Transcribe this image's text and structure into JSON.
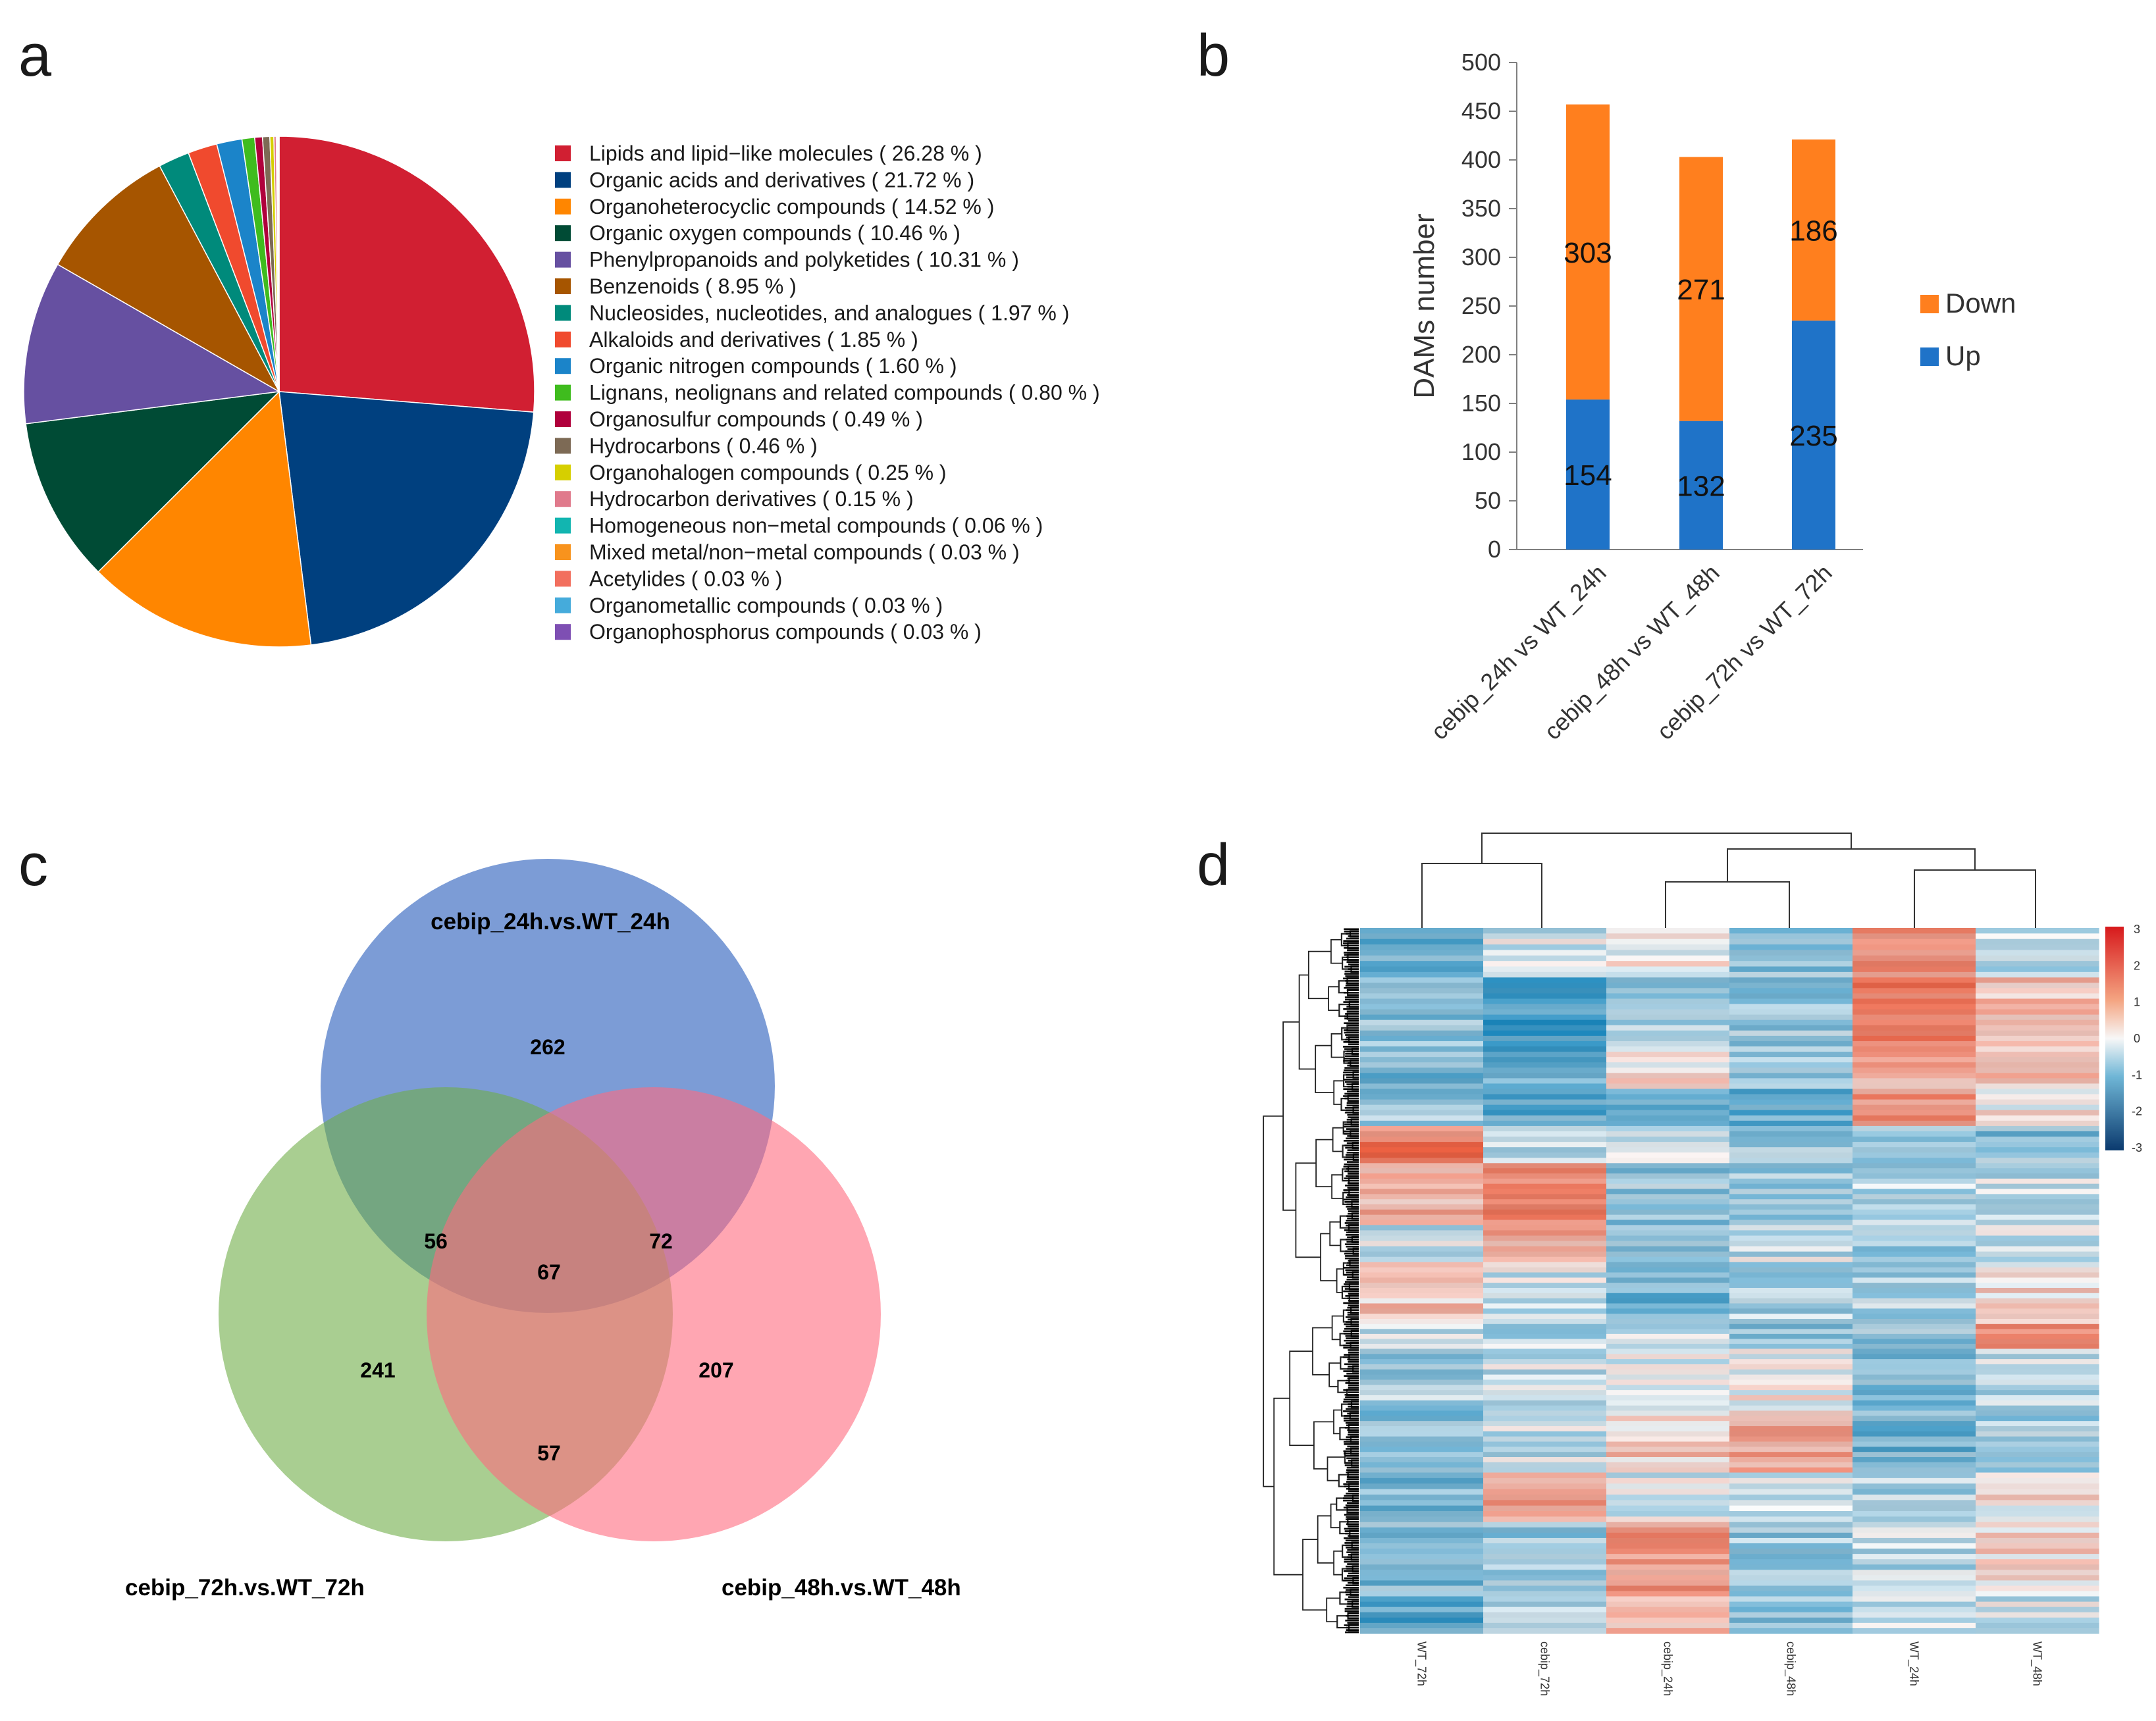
{
  "panels": {
    "a": "a",
    "b": "b",
    "c": "c",
    "d": "d"
  },
  "chart_data": [
    {
      "type": "pie",
      "panel": "a",
      "slices": [
        {
          "label": "Lipids and lipid−like molecules",
          "pct_text": "( 26.28 % )",
          "value": 26.28,
          "color": "#D11F32"
        },
        {
          "label": "Organic acids and derivatives",
          "pct_text": "( 21.72 % )",
          "value": 21.72,
          "color": "#00407F"
        },
        {
          "label": "Organoheterocyclic compounds",
          "pct_text": "( 14.52 % )",
          "value": 14.52,
          "color": "#FF8600"
        },
        {
          "label": "Organic oxygen compounds",
          "pct_text": "( 10.46 % )",
          "value": 10.46,
          "color": "#004B35"
        },
        {
          "label": "Phenylpropanoids and polyketides",
          "pct_text": "( 10.31 % )",
          "value": 10.31,
          "color": "#6650A1"
        },
        {
          "label": "Benzenoids",
          "pct_text": "( 8.95 % )",
          "value": 8.95,
          "color": "#A65500"
        },
        {
          "label": "Nucleosides, nucleotides, and analogues",
          "pct_text": "( 1.97 % )",
          "value": 1.97,
          "color": "#008A7B"
        },
        {
          "label": "Alkaloids and derivatives",
          "pct_text": "( 1.85 % )",
          "value": 1.85,
          "color": "#F04A2E"
        },
        {
          "label": "Organic nitrogen compounds",
          "pct_text": "( 1.60 % )",
          "value": 1.6,
          "color": "#1B84C9"
        },
        {
          "label": "Lignans, neolignans and related compounds",
          "pct_text": "( 0.80 % )",
          "value": 0.8,
          "color": "#3FBC1E"
        },
        {
          "label": "Organosulfur compounds",
          "pct_text": "( 0.49 % )",
          "value": 0.49,
          "color": "#B0003C"
        },
        {
          "label": "Hydrocarbons",
          "pct_text": "( 0.46 % )",
          "value": 0.46,
          "color": "#7D6A55"
        },
        {
          "label": "Organohalogen compounds",
          "pct_text": "( 0.25 % )",
          "value": 0.25,
          "color": "#D6CF00"
        },
        {
          "label": "Hydrocarbon derivatives",
          "pct_text": "( 0.15 % )",
          "value": 0.15,
          "color": "#E07A8C"
        },
        {
          "label": "Homogeneous non−metal compounds",
          "pct_text": "( 0.06 % )",
          "value": 0.06,
          "color": "#12B5B0"
        },
        {
          "label": "Mixed metal/non−metal compounds",
          "pct_text": "( 0.03 % )",
          "value": 0.03,
          "color": "#F8931D"
        },
        {
          "label": "Acetylides",
          "pct_text": "( 0.03 % )",
          "value": 0.03,
          "color": "#F26F5E"
        },
        {
          "label": "Organometallic compounds",
          "pct_text": "( 0.03 % )",
          "value": 0.03,
          "color": "#45ABDB"
        },
        {
          "label": "Organophosphorus compounds",
          "pct_text": "( 0.03 % )",
          "value": 0.03,
          "color": "#7E4FB3"
        }
      ]
    },
    {
      "type": "bar",
      "panel": "b",
      "stacked": true,
      "categories": [
        "cebip_24h vs WT_24h",
        "cebip_48h vs WT_48h",
        "cebip_72h vs WT_72h"
      ],
      "series": [
        {
          "name": "Up",
          "values": [
            154,
            132,
            235
          ],
          "color": "#1F73C8"
        },
        {
          "name": "Down",
          "values": [
            303,
            271,
            186
          ],
          "color": "#FF7F1E"
        }
      ],
      "ylabel": "DAMs number",
      "ylim": [
        0,
        500
      ],
      "yticks": [
        "0",
        "50",
        "100",
        "150",
        "200",
        "250",
        "300",
        "350",
        "400",
        "450",
        "500"
      ],
      "legend_order": [
        "Down",
        "Up"
      ],
      "legend_position": "right"
    },
    {
      "type": "venn",
      "panel": "c",
      "sets": [
        {
          "name": "cebip_24h.vs.WT_24h",
          "color": "#4472C4"
        },
        {
          "name": "cebip_72h.vs.WT_72h",
          "color": "#70AD47"
        },
        {
          "name": "cebip_48h.vs.WT_48h",
          "color": "#FF6B7E"
        }
      ],
      "regions": {
        "only_24h": "262",
        "only_72h": "241",
        "only_48h": "207",
        "24h_72h": "56",
        "24h_48h": "72",
        "48h_72h": "57",
        "all": "67"
      }
    },
    {
      "type": "heatmap",
      "panel": "d",
      "columns": [
        "WT_72h",
        "cebip_72h",
        "cebip_24h",
        "cebip_48h",
        "WT_24h",
        "WT_48h"
      ],
      "colorbar_ticks": [
        "3",
        "2",
        "1",
        "0",
        "-1",
        "-2",
        "-3"
      ],
      "value_range": [
        -3,
        3
      ],
      "colormap": {
        "low": "#0B3A6E",
        "mid": "#F7F7F7",
        "high": "#D7191C"
      },
      "blocks": [
        {
          "rows": 0.2,
          "values": [
            -1.6,
            -0.4,
            0.1,
            -1.0,
            1.9,
            -0.6
          ]
        },
        {
          "rows": 0.3,
          "values": [
            -1.1,
            -2.1,
            -0.8,
            -0.9,
            2.1,
            0.8
          ]
        },
        {
          "rows": 0.15,
          "values": [
            -1.3,
            -1.5,
            0.4,
            -0.8,
            1.2,
            0.7
          ]
        },
        {
          "rows": 0.15,
          "values": [
            -1.0,
            -1.7,
            -1.4,
            -1.6,
            1.6,
            0.3
          ]
        },
        {
          "rows": 0.15,
          "values": [
            2.0,
            -0.6,
            -0.4,
            -0.8,
            -0.7,
            -1.1
          ]
        },
        {
          "rows": 0.25,
          "values": [
            0.9,
            1.8,
            -1.0,
            -0.9,
            -0.7,
            -0.4
          ]
        },
        {
          "rows": 0.15,
          "values": [
            -0.5,
            1.2,
            -1.1,
            -0.4,
            -1.1,
            -0.3
          ]
        },
        {
          "rows": 0.25,
          "values": [
            0.6,
            -0.4,
            -1.4,
            -0.7,
            -0.8,
            0.2
          ]
        },
        {
          "rows": 0.1,
          "values": [
            -0.6,
            -0.6,
            -0.5,
            -1.0,
            -1.1,
            1.4
          ]
        },
        {
          "rows": 0.25,
          "values": [
            -0.8,
            -0.5,
            -0.4,
            0.1,
            -1.2,
            -0.6
          ]
        },
        {
          "rows": 0.25,
          "values": [
            -1.3,
            -0.4,
            0.6,
            1.2,
            -1.4,
            -0.9
          ]
        },
        {
          "rows": 0.2,
          "values": [
            -1.4,
            1.3,
            -0.2,
            -0.3,
            -0.8,
            0.1
          ]
        },
        {
          "rows": 0.3,
          "values": [
            -1.3,
            -1.0,
            1.4,
            -0.9,
            -0.6,
            0.5
          ]
        },
        {
          "rows": 0.15,
          "values": [
            -1.8,
            -0.6,
            1.0,
            -1.1,
            -0.4,
            -0.4
          ]
        }
      ]
    }
  ]
}
